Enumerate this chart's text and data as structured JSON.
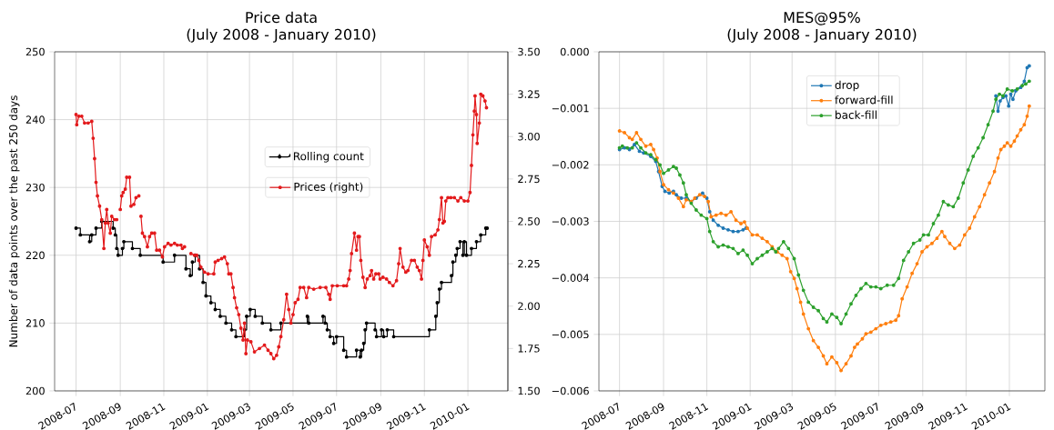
{
  "chart_data": [
    {
      "type": "line",
      "title": "Price data",
      "subtitle": "(July 2008 - January 2010)",
      "ylabel": "Number of data points over the past 250 days",
      "xlim": [
        "2008-06-01",
        "2010-02-26"
      ],
      "xticks": [
        "2008-07",
        "2008-09",
        "2008-11",
        "2009-01",
        "2009-03",
        "2009-05",
        "2009-07",
        "2009-09",
        "2009-11",
        "2010-01"
      ],
      "ylim": [
        200,
        250
      ],
      "yticks": [
        200,
        210,
        220,
        230,
        240,
        250
      ],
      "y2lim": [
        1.5,
        3.5
      ],
      "y2ticks": [
        {
          "value": 1.5,
          "label": "1.50"
        },
        {
          "value": 1.75,
          "label": "1.75"
        },
        {
          "value": 2.0,
          "label": "2.00"
        },
        {
          "value": 2.25,
          "label": "2.25"
        },
        {
          "value": 2.5,
          "label": "2.50"
        },
        {
          "value": 2.75,
          "label": "2.75"
        },
        {
          "value": 3.0,
          "label": "3.00"
        },
        {
          "value": 3.25,
          "label": "3.25"
        },
        {
          "value": 3.5,
          "label": "3.50"
        }
      ],
      "grid": true,
      "legend": "center",
      "marker": "circle",
      "series": [
        {
          "name": "Rolling count",
          "type": "step",
          "color": "#000000",
          "x": [
            "2008-07-01",
            "2008-07-07",
            "2008-07-20",
            "2008-07-23",
            "2008-07-29",
            "2008-08-06",
            "2008-08-22",
            "2008-08-25",
            "2008-08-27",
            "2008-08-29",
            "2008-09-04",
            "2008-09-06",
            "2008-09-18",
            "2008-09-29",
            "2008-10-31",
            "2008-11-16",
            "2008-12-02",
            "2008-12-08",
            "2008-12-11",
            "2008-12-15",
            "2008-12-21",
            "2008-12-26",
            "2008-12-30",
            "2009-01-06",
            "2009-01-12",
            "2009-01-19",
            "2009-01-27",
            "2009-02-04",
            "2009-02-10",
            "2009-02-22",
            "2009-02-25",
            "2009-03-02",
            "2009-03-09",
            "2009-03-19",
            "2009-03-31",
            "2009-04-14",
            "2009-05-21",
            "2009-05-23",
            "2009-06-12",
            "2009-06-15",
            "2009-06-18",
            "2009-06-22",
            "2009-06-27",
            "2009-07-01",
            "2009-07-11",
            "2009-07-15",
            "2009-07-29",
            "2009-08-03",
            "2009-08-05",
            "2009-08-08",
            "2009-08-10",
            "2009-08-12",
            "2009-08-24",
            "2009-08-26",
            "2009-09-02",
            "2009-09-05",
            "2009-09-10",
            "2009-09-19",
            "2009-11-08",
            "2009-11-17",
            "2009-11-19",
            "2009-11-22",
            "2009-11-25",
            "2009-12-09",
            "2009-12-11",
            "2009-12-15",
            "2009-12-17",
            "2009-12-21",
            "2009-12-25",
            "2009-12-27",
            "2009-12-30",
            "2010-01-06",
            "2010-01-13",
            "2010-01-19",
            "2010-01-26",
            "2010-01-28"
          ],
          "values": [
            224,
            223,
            222,
            223,
            224,
            225,
            224,
            223,
            221,
            220,
            221,
            222,
            221,
            220,
            219,
            220,
            218,
            217,
            219,
            220,
            218,
            216,
            214,
            213,
            212,
            211,
            210,
            209,
            208,
            209,
            211,
            212,
            211,
            210,
            209,
            210,
            211,
            210,
            211,
            210,
            209,
            208,
            207,
            208,
            206,
            205,
            206,
            205,
            206,
            207,
            209,
            210,
            209,
            208,
            209,
            208,
            209,
            208,
            209,
            211,
            213,
            215,
            216,
            217,
            219,
            220,
            221,
            222,
            220,
            222,
            220,
            221,
            222,
            223,
            224,
            224
          ]
        },
        {
          "name": "Prices (right)",
          "axis": "y2",
          "color": "#e31a1c",
          "x": [
            "2008-07-01",
            "2008-07-02",
            "2008-07-05",
            "2008-07-09",
            "2008-07-13",
            "2008-07-18",
            "2008-07-23",
            "2008-07-25",
            "2008-07-27",
            "2008-07-29",
            "2008-07-31",
            "2008-08-03",
            "2008-08-06",
            "2008-08-09",
            "2008-08-11",
            "2008-08-13",
            "2008-08-15",
            "2008-08-18",
            "2008-08-20",
            "2008-08-24",
            "2008-08-27",
            "2008-08-30",
            "2008-09-01",
            "2008-09-03",
            "2008-09-05",
            "2008-09-08",
            "2008-09-10",
            "2008-09-14",
            "2008-09-16",
            "2008-09-20",
            "2008-09-23",
            "2008-09-27",
            "2008-09-28",
            "2008-09-30",
            "2008-10-02",
            "2008-10-05",
            "2008-10-09",
            "2008-10-12",
            "2008-10-15",
            "2008-10-19",
            "2008-10-22",
            "2008-10-26",
            "2008-10-30",
            "2008-11-02",
            "2008-11-07",
            "2008-11-11",
            "2008-11-16",
            "2008-11-20",
            "2008-11-25",
            "2008-11-27",
            "2008-11-30",
            "2008-12-04",
            "2008-12-09",
            "2008-12-14",
            "2008-12-17",
            "2008-12-20",
            "2008-12-23",
            "2008-12-28",
            "2009-01-02",
            "2009-01-10",
            "2009-01-12",
            "2009-01-16",
            "2009-01-21",
            "2009-01-25",
            "2009-01-29",
            "2009-01-31",
            "2009-02-03",
            "2009-02-06",
            "2009-02-08",
            "2009-02-11",
            "2009-02-14",
            "2009-02-17",
            "2009-02-20",
            "2009-02-22",
            "2009-02-24",
            "2009-02-26",
            "2009-03-03",
            "2009-03-08",
            "2009-03-15",
            "2009-03-22",
            "2009-03-27",
            "2009-03-31",
            "2009-04-04",
            "2009-04-08",
            "2009-04-11",
            "2009-04-14",
            "2009-04-18",
            "2009-04-22",
            "2009-04-25",
            "2009-04-28",
            "2009-05-01",
            "2009-05-04",
            "2009-05-08",
            "2009-05-11",
            "2009-05-16",
            "2009-05-20",
            "2009-05-23",
            "2009-05-30",
            "2009-06-08",
            "2009-06-16",
            "2009-06-20",
            "2009-06-22",
            "2009-06-25",
            "2009-07-02",
            "2009-07-11",
            "2009-07-15",
            "2009-07-18",
            "2009-07-20",
            "2009-07-22",
            "2009-07-26",
            "2009-07-29",
            "2009-07-31",
            "2009-08-02",
            "2009-08-04",
            "2009-08-07",
            "2009-08-10",
            "2009-08-13",
            "2009-08-17",
            "2009-08-19",
            "2009-08-22",
            "2009-08-25",
            "2009-08-29",
            "2009-08-31",
            "2009-09-04",
            "2009-09-09",
            "2009-09-13",
            "2009-09-18",
            "2009-09-23",
            "2009-09-26",
            "2009-09-28",
            "2009-10-02",
            "2009-10-06",
            "2009-10-09",
            "2009-10-14",
            "2009-10-18",
            "2009-10-22",
            "2009-10-25",
            "2009-10-28",
            "2009-10-30",
            "2009-11-01",
            "2009-11-05",
            "2009-11-08",
            "2009-11-11",
            "2009-11-16",
            "2009-11-20",
            "2009-11-22",
            "2009-11-25",
            "2009-11-27",
            "2009-11-29",
            "2009-12-01",
            "2009-12-04",
            "2009-12-08",
            "2009-12-13",
            "2009-12-18",
            "2009-12-22",
            "2009-12-27",
            "2010-01-01",
            "2010-01-04",
            "2010-01-06",
            "2010-01-08",
            "2010-01-10",
            "2010-01-11",
            "2010-01-13",
            "2010-01-14",
            "2010-01-17",
            "2010-01-19",
            "2010-01-22",
            "2010-01-25",
            "2010-01-27"
          ],
          "values": [
            3.13,
            3.07,
            3.12,
            3.12,
            3.08,
            3.08,
            3.09,
            2.99,
            2.87,
            2.73,
            2.65,
            2.59,
            2.51,
            2.34,
            2.49,
            2.57,
            2.49,
            2.43,
            2.53,
            2.51,
            2.51,
            null,
            2.57,
            2.65,
            2.67,
            2.69,
            2.76,
            2.76,
            2.59,
            2.6,
            2.64,
            2.65,
            null,
            2.53,
            2.43,
            2.41,
            2.35,
            2.41,
            2.43,
            2.43,
            2.33,
            2.33,
            2.29,
            2.35,
            2.37,
            2.36,
            2.37,
            2.36,
            2.36,
            2.34,
            2.35,
            null,
            2.31,
            2.3,
            2.3,
            2.27,
            2.23,
            2.2,
            2.19,
            2.19,
            2.26,
            2.27,
            2.28,
            2.29,
            2.25,
            2.19,
            2.19,
            2.11,
            2.05,
            1.99,
            1.95,
            1.87,
            1.8,
            1.9,
            1.72,
            1.8,
            1.79,
            1.73,
            1.75,
            1.77,
            1.74,
            1.72,
            1.69,
            1.71,
            1.76,
            1.82,
            1.92,
            2.07,
            1.98,
            1.9,
            1.95,
            2.02,
            2.04,
            2.11,
            2.11,
            2.05,
            2.11,
            2.1,
            2.11,
            2.11,
            2.07,
            2.04,
            2.12,
            2.12,
            2.12,
            2.12,
            2.16,
            2.21,
            2.31,
            2.43,
            2.33,
            2.41,
            2.41,
            2.27,
            2.17,
            2.11,
            2.16,
            2.18,
            2.21,
            2.16,
            2.19,
            2.19,
            2.16,
            2.17,
            2.16,
            2.14,
            2.12,
            2.15,
            2.25,
            2.34,
            2.23,
            2.2,
            2.21,
            2.27,
            2.27,
            2.23,
            2.21,
            2.16,
            2.27,
            2.39,
            2.35,
            2.3,
            2.41,
            2.42,
            2.45,
            2.51,
            2.64,
            2.49,
            2.5,
            2.62,
            2.64,
            2.64,
            2.64,
            2.62,
            2.64,
            2.62,
            2.62,
            2.67,
            2.83,
            3.01,
            3.15,
            3.24,
            3.13,
            2.96,
            3.08,
            3.25,
            3.24,
            3.21,
            3.17
          ]
        }
      ]
    },
    {
      "type": "line",
      "title": "MES@95%",
      "subtitle": "(July 2008 - January 2010)",
      "xlim": [
        "2008-06-02",
        "2010-02-20"
      ],
      "xticks": [
        "2008-07",
        "2008-09",
        "2008-11",
        "2009-01",
        "2009-03",
        "2009-05",
        "2009-07",
        "2009-09",
        "2009-11",
        "2010-01"
      ],
      "ylim": [
        -0.006,
        0
      ],
      "yticks": [
        {
          "value": -0.006,
          "label": "−0.006"
        },
        {
          "value": -0.005,
          "label": "−0.005"
        },
        {
          "value": -0.004,
          "label": "−0.004"
        },
        {
          "value": -0.003,
          "label": "−0.003"
        },
        {
          "value": -0.002,
          "label": "−0.002"
        },
        {
          "value": -0.001,
          "label": "−0.001"
        },
        {
          "value": 0,
          "label": "0.000"
        }
      ],
      "grid": true,
      "legend": "top center",
      "marker": "circle",
      "series": [
        {
          "name": "drop",
          "color": "#1f77b4",
          "x": [
            "2008-07-01",
            "2008-07-08",
            "2008-07-15",
            "2008-07-22",
            "2008-07-29",
            "2008-08-04",
            "2008-08-14",
            "2008-08-21",
            "2008-08-25",
            "2008-08-30",
            "2008-09-03",
            "2008-09-09",
            "2008-09-15",
            "2008-09-19",
            "2008-09-26",
            "2008-10-03",
            "2008-10-10",
            "2008-10-17",
            "2008-10-26",
            "2008-11-01",
            "2008-11-05",
            "2008-11-10",
            "2008-11-17",
            "2008-11-24",
            "2008-12-01",
            "2008-12-08",
            "2008-12-15",
            "2008-12-22",
            "2008-12-26",
            "2009-06-01",
            "2009-12-13",
            "2009-12-16",
            "2009-12-19",
            "2009-12-23",
            "2009-12-27",
            "2009-12-31",
            "2010-01-03",
            "2010-01-06",
            "2010-01-10",
            "2010-01-17",
            "2010-01-22",
            "2010-01-26",
            "2010-01-29"
          ],
          "values": [
            -0.00173,
            -0.0017,
            -0.00173,
            -0.00164,
            -0.00176,
            -0.00179,
            -0.00185,
            -0.00194,
            -0.00212,
            -0.00238,
            -0.00247,
            -0.0025,
            -0.00247,
            -0.00253,
            -0.00259,
            -0.00259,
            -0.00265,
            -0.00259,
            -0.0025,
            -0.00259,
            -0.00283,
            -0.00298,
            -0.00307,
            -0.00312,
            -0.00315,
            -0.00318,
            -0.00318,
            -0.00315,
            -0.00312,
            null,
            -0.00078,
            -0.00105,
            -0.00087,
            -0.00081,
            -0.00078,
            -0.00096,
            -0.00075,
            -0.00084,
            -0.00069,
            -0.00063,
            -0.00052,
            -0.00028,
            -0.00025
          ]
        },
        {
          "name": "forward-fill",
          "color": "#ff7f0e",
          "x": [
            "2008-07-01",
            "2008-07-08",
            "2008-07-15",
            "2008-07-19",
            "2008-07-25",
            "2008-07-31",
            "2008-08-07",
            "2008-08-14",
            "2008-08-18",
            "2008-08-23",
            "2008-08-27",
            "2008-09-01",
            "2008-09-08",
            "2008-09-15",
            "2008-09-22",
            "2008-09-29",
            "2008-10-03",
            "2008-10-10",
            "2008-10-15",
            "2008-10-22",
            "2008-10-29",
            "2008-11-03",
            "2008-11-07",
            "2008-11-14",
            "2008-11-21",
            "2008-11-28",
            "2008-12-05",
            "2008-12-12",
            "2008-12-19",
            "2008-12-24",
            "2008-12-28",
            "2009-01-04",
            "2009-01-11",
            "2009-01-18",
            "2009-01-25",
            "2009-02-01",
            "2009-02-08",
            "2009-02-15",
            "2009-02-22",
            "2009-02-27",
            "2009-03-04",
            "2009-03-08",
            "2009-03-13",
            "2009-03-17",
            "2009-03-24",
            "2009-03-31",
            "2009-04-07",
            "2009-04-14",
            "2009-04-19",
            "2009-04-26",
            "2009-05-03",
            "2009-05-09",
            "2009-05-16",
            "2009-05-23",
            "2009-05-28",
            "2009-06-01",
            "2009-06-08",
            "2009-06-13",
            "2009-06-20",
            "2009-06-27",
            "2009-07-04",
            "2009-07-11",
            "2009-07-18",
            "2009-07-25",
            "2009-07-29",
            "2009-08-03",
            "2009-08-10",
            "2009-08-17",
            "2009-08-24",
            "2009-08-31",
            "2009-09-07",
            "2009-09-14",
            "2009-09-21",
            "2009-09-28",
            "2009-10-02",
            "2009-10-09",
            "2009-10-16",
            "2009-10-23",
            "2009-10-30",
            "2009-11-06",
            "2009-11-13",
            "2009-11-20",
            "2009-11-27",
            "2009-12-04",
            "2009-12-11",
            "2009-12-16",
            "2009-12-20",
            "2009-12-25",
            "2009-12-29",
            "2010-01-03",
            "2010-01-08",
            "2010-01-12",
            "2010-01-17",
            "2010-01-22",
            "2010-01-26",
            "2010-01-29"
          ],
          "values": [
            -0.0014,
            -0.00143,
            -0.00152,
            -0.00155,
            -0.00143,
            -0.00155,
            -0.00167,
            -0.00164,
            -0.00173,
            -0.00188,
            -0.00212,
            -0.00235,
            -0.00244,
            -0.0025,
            -0.00259,
            -0.00274,
            -0.00262,
            -0.00265,
            -0.00259,
            -0.00253,
            -0.00256,
            -0.00265,
            -0.00292,
            -0.00289,
            -0.00286,
            -0.00289,
            -0.00283,
            -0.00298,
            -0.00304,
            -0.00301,
            -0.00312,
            -0.00324,
            -0.00324,
            -0.0033,
            -0.00336,
            -0.00345,
            -0.00354,
            -0.0036,
            -0.00366,
            -0.00389,
            -0.00401,
            -0.00419,
            -0.00443,
            -0.00464,
            -0.0049,
            -0.00511,
            -0.00523,
            -0.00538,
            -0.00552,
            -0.0054,
            -0.0055,
            -0.00564,
            -0.00552,
            -0.00538,
            -0.00523,
            -0.00517,
            -0.00508,
            -0.00499,
            -0.00496,
            -0.0049,
            -0.00484,
            -0.00481,
            -0.00478,
            -0.00475,
            -0.00467,
            -0.00437,
            -0.00416,
            -0.00392,
            -0.00375,
            -0.00354,
            -0.00345,
            -0.00339,
            -0.0033,
            -0.00318,
            -0.00327,
            -0.00339,
            -0.00348,
            -0.00342,
            -0.00324,
            -0.00312,
            -0.00292,
            -0.00274,
            -0.00253,
            -0.00232,
            -0.00212,
            -0.00188,
            -0.00173,
            -0.00167,
            -0.00161,
            -0.00167,
            -0.00158,
            -0.00149,
            -0.00138,
            -0.00129,
            -0.00114,
            -0.00096
          ]
        },
        {
          "name": "back-fill",
          "color": "#2ca02c",
          "x": [
            "2008-07-01",
            "2008-07-05",
            "2008-07-12",
            "2008-07-19",
            "2008-07-25",
            "2008-07-31",
            "2008-08-07",
            "2008-08-14",
            "2008-08-21",
            "2008-08-27",
            "2008-09-01",
            "2008-09-08",
            "2008-09-15",
            "2008-09-19",
            "2008-09-24",
            "2008-09-29",
            "2008-10-03",
            "2008-10-10",
            "2008-10-17",
            "2008-10-24",
            "2008-11-01",
            "2008-11-05",
            "2008-11-10",
            "2008-11-17",
            "2008-11-24",
            "2008-12-01",
            "2008-12-08",
            "2008-12-15",
            "2008-12-22",
            "2008-12-28",
            "2009-01-04",
            "2009-01-11",
            "2009-01-18",
            "2009-01-25",
            "2009-02-01",
            "2009-02-06",
            "2009-02-10",
            "2009-02-17",
            "2009-02-24",
            "2009-03-04",
            "2009-03-10",
            "2009-03-17",
            "2009-03-24",
            "2009-03-31",
            "2009-04-07",
            "2009-04-14",
            "2009-04-19",
            "2009-04-26",
            "2009-05-03",
            "2009-05-09",
            "2009-05-16",
            "2009-05-23",
            "2009-05-30",
            "2009-06-06",
            "2009-06-13",
            "2009-06-20",
            "2009-06-27",
            "2009-07-04",
            "2009-07-13",
            "2009-07-22",
            "2009-07-29",
            "2009-08-05",
            "2009-08-12",
            "2009-08-19",
            "2009-08-28",
            "2009-09-02",
            "2009-09-09",
            "2009-09-16",
            "2009-09-23",
            "2009-09-30",
            "2009-10-07",
            "2009-10-14",
            "2009-10-21",
            "2009-10-28",
            "2009-11-04",
            "2009-11-11",
            "2009-11-18",
            "2009-11-25",
            "2009-12-02",
            "2009-12-09",
            "2009-12-13",
            "2009-12-18",
            "2009-12-23",
            "2009-12-29",
            "2010-01-05",
            "2010-01-12",
            "2010-01-19",
            "2010-01-24",
            "2010-01-29"
          ],
          "values": [
            -0.0017,
            -0.00167,
            -0.0017,
            -0.0017,
            -0.00161,
            -0.0017,
            -0.00179,
            -0.00182,
            -0.00191,
            -0.002,
            -0.00215,
            -0.00209,
            -0.00203,
            -0.00206,
            -0.00218,
            -0.00232,
            -0.00253,
            -0.00268,
            -0.0028,
            -0.00289,
            -0.00295,
            -0.00318,
            -0.00336,
            -0.00345,
            -0.00342,
            -0.00345,
            -0.00348,
            -0.00357,
            -0.00351,
            -0.0036,
            -0.00375,
            -0.00366,
            -0.0036,
            -0.00354,
            -0.00348,
            -0.00354,
            -0.00348,
            -0.00336,
            -0.00348,
            -0.00366,
            -0.00395,
            -0.00422,
            -0.00443,
            -0.00452,
            -0.00458,
            -0.00472,
            -0.00478,
            -0.00464,
            -0.0047,
            -0.00481,
            -0.00464,
            -0.00446,
            -0.00431,
            -0.00419,
            -0.0041,
            -0.00416,
            -0.00416,
            -0.00419,
            -0.00413,
            -0.00413,
            -0.00401,
            -0.00369,
            -0.00354,
            -0.00339,
            -0.00333,
            -0.00324,
            -0.00324,
            -0.00304,
            -0.00289,
            -0.00265,
            -0.00271,
            -0.00274,
            -0.00259,
            -0.00232,
            -0.00209,
            -0.00185,
            -0.0017,
            -0.00152,
            -0.00129,
            -0.00105,
            -0.00084,
            -0.00075,
            -0.00078,
            -0.00066,
            -0.00069,
            -0.00066,
            -0.0006,
            -0.00057,
            -0.00052
          ]
        }
      ]
    }
  ]
}
